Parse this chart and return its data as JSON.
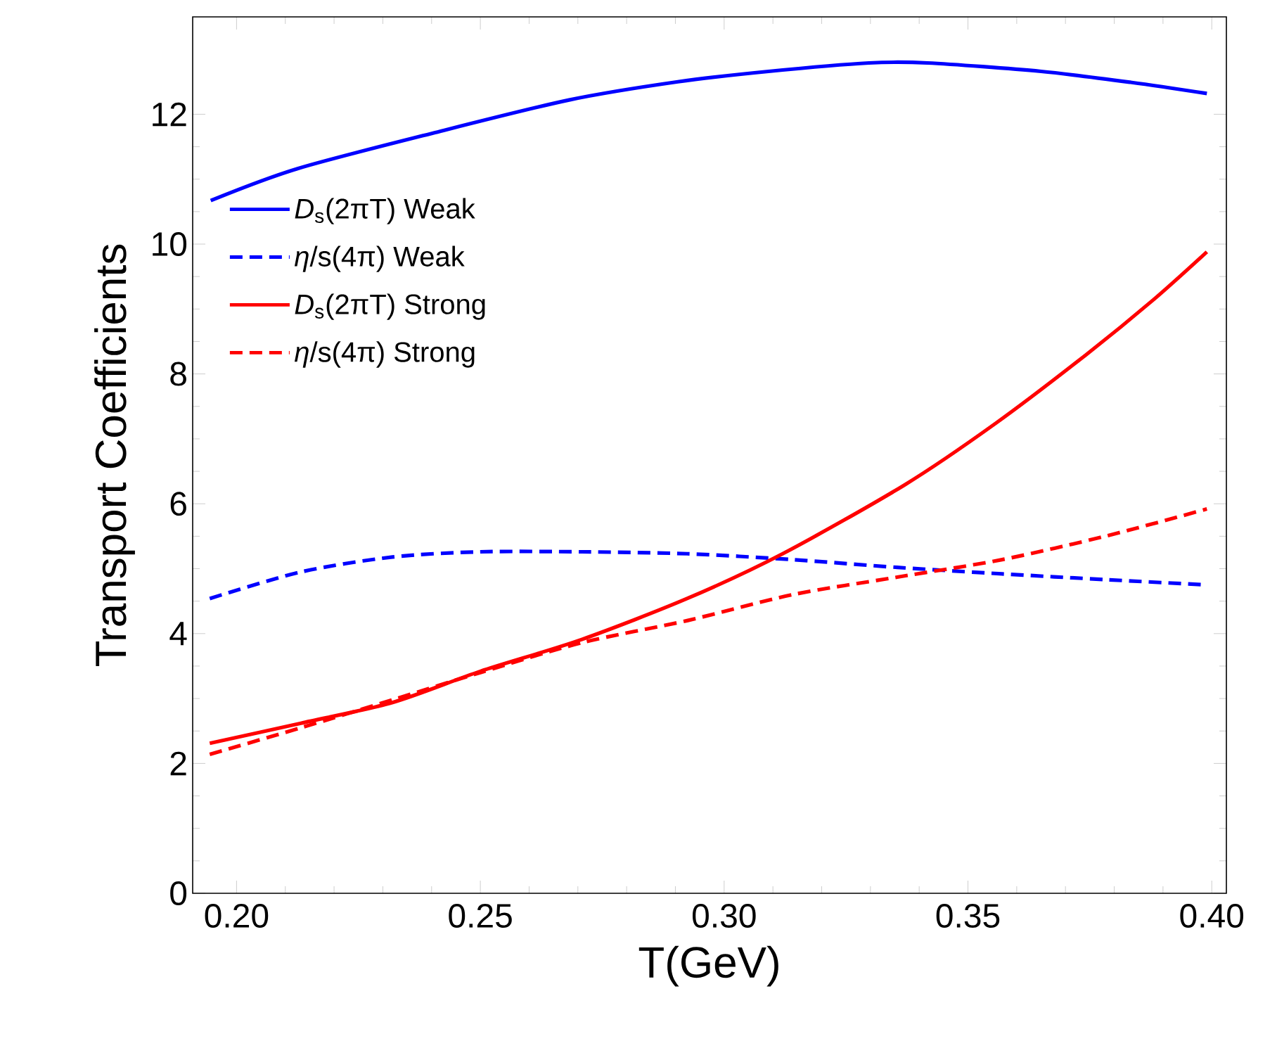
{
  "chart_data": {
    "type": "line",
    "xlabel": "T(GeV)",
    "ylabel": "Transport Coefficients",
    "xlim": [
      0.191,
      0.403
    ],
    "ylim": [
      0,
      13.5
    ],
    "xticks": [
      {
        "value": 0.2,
        "label": "0.20"
      },
      {
        "value": 0.25,
        "label": "0.25"
      },
      {
        "value": 0.3,
        "label": "0.30"
      },
      {
        "value": 0.35,
        "label": "0.35"
      },
      {
        "value": 0.4,
        "label": "0.40"
      }
    ],
    "yticks": [
      0,
      2,
      4,
      6,
      8,
      10,
      12
    ],
    "legend": "top left",
    "series": [
      {
        "name": "*D*$_{s}$(2πT)  Weak",
        "color": "#0000ff",
        "line_style": "solid",
        "x": [
          0.1947,
          0.2124,
          0.2403,
          0.2682,
          0.2905,
          0.3091,
          0.3297,
          0.3417,
          0.365,
          0.3836,
          0.399
        ],
        "values": [
          10.67,
          11.16,
          11.71,
          12.22,
          12.5,
          12.66,
          12.79,
          12.79,
          12.66,
          12.49,
          12.32
        ]
      },
      {
        "name": "*η*/s(4π)   Weak",
        "color": "#0000ff",
        "line_style": "dashed",
        "x": [
          0.1945,
          0.2132,
          0.232,
          0.25,
          0.2708,
          0.2924,
          0.314,
          0.3355,
          0.357,
          0.3787,
          0.399
        ],
        "values": [
          4.54,
          4.95,
          5.18,
          5.26,
          5.26,
          5.23,
          5.14,
          5.02,
          4.92,
          4.83,
          4.75
        ]
      },
      {
        "name": "*D*$_{s}$(2πT) Strong",
        "color": "#ff0000",
        "line_style": "solid",
        "x": [
          0.1945,
          0.2132,
          0.232,
          0.25,
          0.2708,
          0.2924,
          0.312,
          0.337,
          0.3557,
          0.3743,
          0.388,
          0.399
        ],
        "values": [
          2.31,
          2.62,
          2.94,
          3.42,
          3.91,
          4.54,
          5.23,
          6.29,
          7.24,
          8.3,
          9.14,
          9.88
        ]
      },
      {
        "name": "*η*/s(4π)   Strong",
        "color": "#ff0000",
        "line_style": "dashed",
        "x": [
          0.1945,
          0.2132,
          0.232,
          0.25,
          0.2708,
          0.2924,
          0.314,
          0.3355,
          0.357,
          0.3787,
          0.399
        ],
        "values": [
          2.14,
          2.55,
          2.98,
          3.4,
          3.86,
          4.2,
          4.6,
          4.87,
          5.14,
          5.51,
          5.92
        ]
      }
    ]
  }
}
